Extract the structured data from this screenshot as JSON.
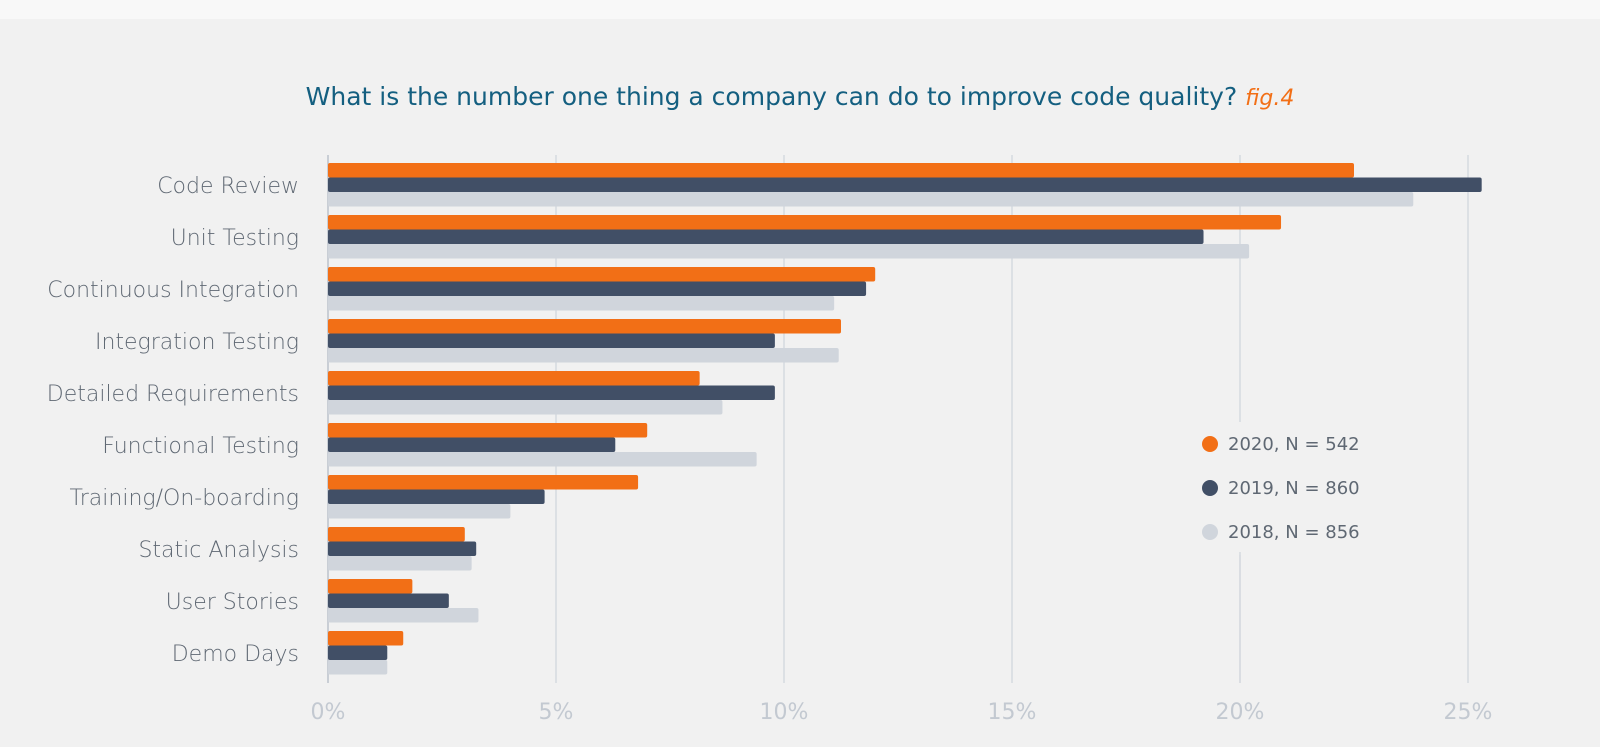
{
  "chart_data": {
    "type": "bar",
    "orientation": "horizontal",
    "title": "What is the number one thing a company can do to improve code quality?",
    "title_suffix": "fig.4",
    "categories": [
      "Code Review",
      "Unit Testing",
      "Continuous Integration",
      "Integration Testing",
      "Detailed Requirements",
      "Functional Testing",
      "Training/On-boarding",
      "Static Analysis",
      "User Stories",
      "Demo Days"
    ],
    "series": [
      {
        "name": "2020, N = 542",
        "color": "#f26f16",
        "values": [
          22.5,
          20.9,
          12.0,
          11.25,
          8.15,
          7.0,
          6.8,
          3.0,
          1.85,
          1.65
        ]
      },
      {
        "name": "2019, N = 860",
        "color": "#414f66",
        "values": [
          25.3,
          19.2,
          11.8,
          9.8,
          9.8,
          6.3,
          4.75,
          3.25,
          2.65,
          1.3
        ]
      },
      {
        "name": "2018, N = 856",
        "color": "#d0d5dc",
        "values": [
          23.8,
          20.2,
          11.1,
          11.2,
          8.65,
          9.4,
          4.0,
          3.15,
          3.3,
          1.3
        ]
      }
    ],
    "xlim": [
      0,
      25
    ],
    "xticks": [
      0,
      5,
      10,
      15,
      20,
      25
    ],
    "xtick_labels": [
      "0%",
      "5%",
      "10%",
      "15%",
      "20%",
      "25%"
    ],
    "grid": true,
    "legend_position": "right"
  }
}
